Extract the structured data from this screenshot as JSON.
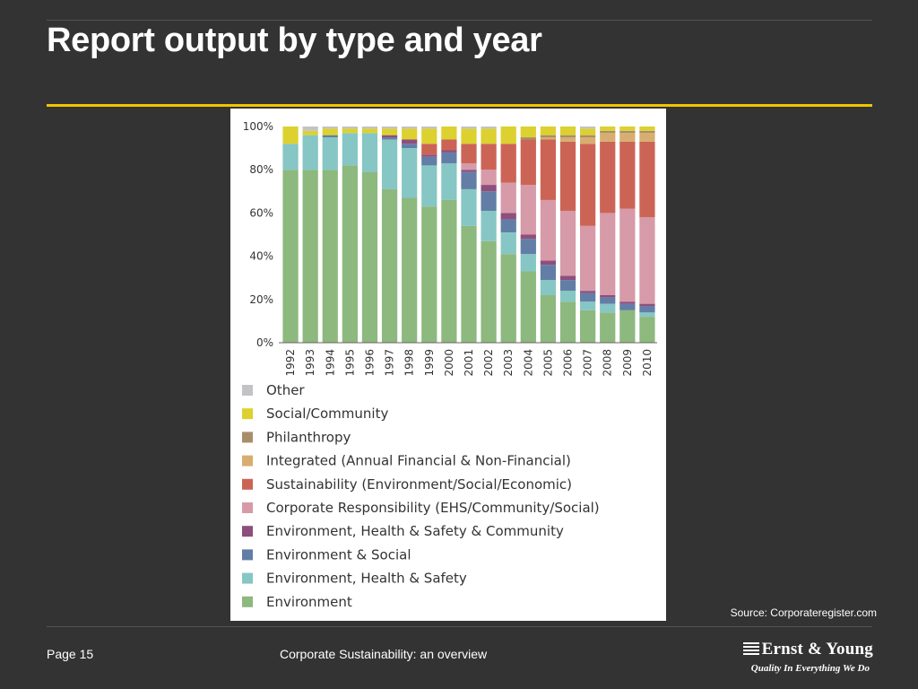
{
  "slide": {
    "title": "Report output by type and year",
    "source": "Source: Corporateregister.com",
    "page": "Page 15",
    "footer": "Corporate Sustainability: an overview",
    "logo_name": "Ernst & Young",
    "logo_tagline": "Quality In Everything We Do"
  },
  "chart_data": {
    "type": "bar",
    "stacked": true,
    "percent": true,
    "title": "",
    "xlabel": "",
    "ylabel": "",
    "ylim": [
      0,
      100
    ],
    "yticks": [
      0,
      20,
      40,
      60,
      80,
      100
    ],
    "ytick_labels": [
      "0%",
      "20%",
      "40%",
      "60%",
      "80%",
      "100%"
    ],
    "legend_position": "bottom",
    "categories": [
      "1992",
      "1993",
      "1994",
      "1995",
      "1996",
      "1997",
      "1998",
      "1999",
      "2000",
      "2001",
      "2002",
      "2003",
      "2004",
      "2005",
      "2006",
      "2007",
      "2008",
      "2009",
      "2010"
    ],
    "series": [
      {
        "name": "Environment",
        "color": "#8db87e",
        "values": [
          80,
          80,
          80,
          82,
          79,
          71,
          67,
          63,
          66,
          54,
          47,
          41,
          33,
          22,
          19,
          15,
          14,
          15,
          12
        ]
      },
      {
        "name": "Environment, Health & Safety",
        "color": "#86c6c4",
        "values": [
          12,
          16,
          15,
          15,
          18,
          23,
          23,
          19,
          17,
          17,
          14,
          10,
          8,
          7,
          5,
          4,
          4,
          0,
          2
        ]
      },
      {
        "name": "Environment & Social",
        "color": "#627ea6",
        "values": [
          0,
          0,
          1,
          0,
          0,
          1,
          2,
          4,
          5,
          8,
          9,
          6,
          7,
          7,
          5,
          4,
          3,
          3,
          3
        ]
      },
      {
        "name": "Environment, Health & Safety & Community",
        "color": "#8e4f7c",
        "values": [
          0,
          0,
          0,
          0,
          0,
          1,
          2,
          1,
          1,
          1,
          3,
          3,
          2,
          2,
          2,
          1,
          1,
          1,
          1
        ]
      },
      {
        "name": "Corporate Responsibility (EHS/Community/Social)",
        "color": "#d69aa9",
        "values": [
          0,
          0,
          0,
          0,
          0,
          0,
          0,
          0,
          0,
          3,
          7,
          14,
          23,
          28,
          30,
          30,
          38,
          43,
          40
        ]
      },
      {
        "name": "Sustainability (Environment/Social/Economic)",
        "color": "#cc6456",
        "values": [
          0,
          0,
          0,
          0,
          0,
          0,
          0,
          5,
          5,
          9,
          12,
          18,
          21,
          28,
          32,
          38,
          33,
          31,
          35
        ]
      },
      {
        "name": "Integrated (Annual Financial & Non-Financial)",
        "color": "#d7ae6f",
        "values": [
          0,
          0,
          0,
          0,
          0,
          0,
          0,
          0,
          0,
          0,
          0,
          0,
          0,
          1,
          2,
          3,
          4,
          4,
          4
        ]
      },
      {
        "name": "Philanthropy",
        "color": "#a88d6b",
        "values": [
          0,
          0,
          0,
          0,
          0,
          0,
          0,
          0,
          0,
          0,
          0,
          0,
          1,
          1,
          1,
          1,
          1,
          1,
          1
        ]
      },
      {
        "name": "Social/Community",
        "color": "#dcd12f",
        "values": [
          8,
          2,
          3,
          2,
          2,
          3,
          5,
          7,
          6,
          7,
          7,
          8,
          5,
          4,
          4,
          3,
          2,
          2,
          2
        ]
      },
      {
        "name": "Other",
        "color": "#c3c3c5",
        "values": [
          0,
          2,
          1,
          1,
          1,
          1,
          1,
          1,
          0,
          1,
          1,
          0,
          0,
          0,
          0,
          1,
          0,
          0,
          0
        ]
      }
    ]
  }
}
